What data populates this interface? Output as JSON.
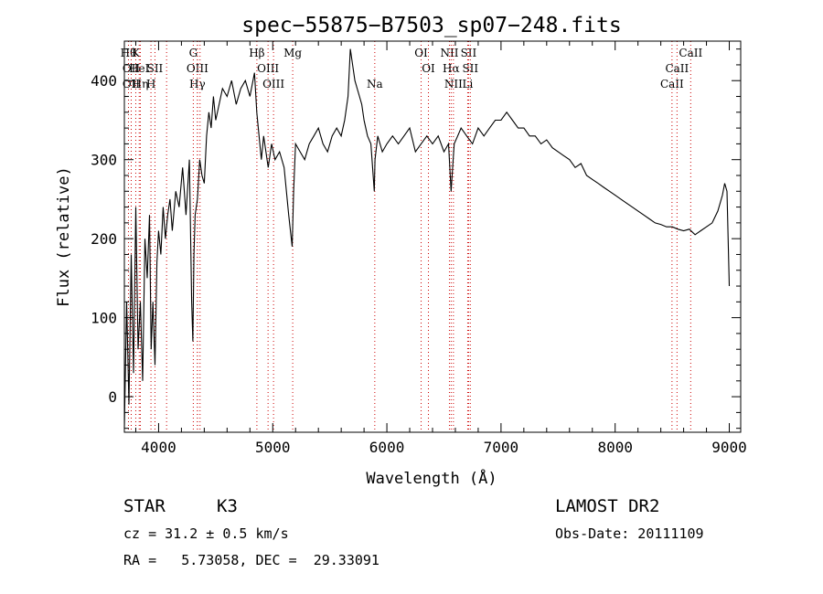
{
  "chart_data": {
    "type": "line",
    "title": "spec−55875−B7503_sp07−248.fits",
    "xlabel": "Wavelength (Å)",
    "ylabel": "Flux (relative)",
    "xlim": [
      3700,
      9100
    ],
    "ylim": [
      -45,
      450
    ],
    "xticks": [
      4000,
      5000,
      6000,
      7000,
      8000,
      9000
    ],
    "yticks": [
      0,
      100,
      200,
      300,
      400
    ],
    "series": [
      {
        "x": [
          3700,
          3720,
          3740,
          3760,
          3780,
          3800,
          3820,
          3840,
          3860,
          3880,
          3900,
          3920,
          3935,
          3950,
          3968,
          3985,
          4000,
          4020,
          4040,
          4060,
          4080,
          4100,
          4120,
          4150,
          4180,
          4210,
          4240,
          4270,
          4290,
          4300,
          4310,
          4320,
          4340,
          4360,
          4380,
          4400,
          4420,
          4440,
          4460,
          4480,
          4500,
          4530,
          4560,
          4600,
          4640,
          4680,
          4720,
          4760,
          4800,
          4840,
          4860,
          4880,
          4900,
          4920,
          4940,
          4960,
          4990,
          5020,
          5060,
          5100,
          5140,
          5170,
          5183,
          5200,
          5240,
          5280,
          5320,
          5360,
          5400,
          5440,
          5480,
          5520,
          5560,
          5600,
          5630,
          5660,
          5680,
          5700,
          5720,
          5740,
          5760,
          5780,
          5800,
          5830,
          5860,
          5890,
          5896,
          5920,
          5960,
          6000,
          6050,
          6100,
          6150,
          6200,
          6250,
          6300,
          6350,
          6400,
          6450,
          6500,
          6540,
          6563,
          6590,
          6620,
          6650,
          6700,
          6750,
          6800,
          6850,
          6900,
          6950,
          7000,
          7050,
          7100,
          7150,
          7200,
          7250,
          7300,
          7350,
          7400,
          7450,
          7500,
          7550,
          7600,
          7650,
          7700,
          7750,
          7800,
          7850,
          7900,
          7950,
          8000,
          8050,
          8100,
          8150,
          8200,
          8250,
          8300,
          8350,
          8400,
          8450,
          8500,
          8550,
          8600,
          8650,
          8700,
          8750,
          8800,
          8850,
          8900,
          8940,
          8960,
          8980,
          9000
        ],
        "y": [
          -40,
          120,
          -10,
          180,
          30,
          240,
          60,
          120,
          20,
          200,
          150,
          230,
          60,
          120,
          40,
          170,
          210,
          180,
          240,
          200,
          230,
          250,
          210,
          260,
          240,
          290,
          230,
          300,
          120,
          70,
          180,
          230,
          250,
          300,
          280,
          270,
          330,
          360,
          340,
          380,
          350,
          370,
          390,
          380,
          400,
          370,
          390,
          400,
          380,
          410,
          360,
          330,
          300,
          330,
          310,
          290,
          320,
          300,
          310,
          290,
          230,
          190,
          260,
          320,
          310,
          300,
          320,
          330,
          340,
          320,
          310,
          330,
          340,
          330,
          350,
          380,
          440,
          420,
          400,
          390,
          380,
          370,
          350,
          330,
          320,
          260,
          300,
          330,
          310,
          320,
          330,
          320,
          330,
          340,
          310,
          320,
          330,
          320,
          330,
          310,
          320,
          260,
          320,
          330,
          340,
          330,
          320,
          340,
          330,
          340,
          350,
          350,
          360,
          350,
          340,
          340,
          330,
          330,
          320,
          325,
          315,
          310,
          305,
          300,
          290,
          295,
          280,
          275,
          270,
          265,
          260,
          255,
          250,
          245,
          240,
          235,
          230,
          225,
          220,
          218,
          215,
          215,
          212,
          210,
          212,
          205,
          210,
          215,
          220,
          235,
          255,
          270,
          260,
          140
        ]
      }
    ],
    "line_markers": [
      {
        "x": 3736,
        "label": "Hθ",
        "row": 0
      },
      {
        "x": 3760,
        "label": "OII",
        "row": 1
      },
      {
        "x": 3760,
        "label": "OII",
        "row": 2
      },
      {
        "x": 3800,
        "label": "K",
        "row": 0
      },
      {
        "x": 3830,
        "label": "HeI",
        "row": 1
      },
      {
        "x": 3840,
        "label": "Hη",
        "row": 2
      },
      {
        "x": 3933,
        "label": "H",
        "row": 2
      },
      {
        "x": 3968,
        "label": "SII",
        "row": 1
      },
      {
        "x": 4070,
        "label": "",
        "row": 0
      },
      {
        "x": 4304,
        "label": "G",
        "row": 0
      },
      {
        "x": 4340,
        "label": "OIII",
        "row": 1
      },
      {
        "x": 4340,
        "label": "Hγ",
        "row": 2
      },
      {
        "x": 4363,
        "label": "",
        "row": 0
      },
      {
        "x": 4861,
        "label": "Hβ",
        "row": 0
      },
      {
        "x": 4959,
        "label": "OIII",
        "row": 1
      },
      {
        "x": 5007,
        "label": "OIII",
        "row": 2
      },
      {
        "x": 5175,
        "label": "Mg",
        "row": 0
      },
      {
        "x": 5894,
        "label": "Na",
        "row": 2
      },
      {
        "x": 6300,
        "label": "OI",
        "row": 0
      },
      {
        "x": 6364,
        "label": "OI",
        "row": 1
      },
      {
        "x": 6548,
        "label": "NII",
        "row": 0
      },
      {
        "x": 6563,
        "label": "Hα",
        "row": 1
      },
      {
        "x": 6583,
        "label": "NII",
        "row": 2
      },
      {
        "x": 6716,
        "label": "SII",
        "row": 0
      },
      {
        "x": 6731,
        "label": "SII",
        "row": 1
      },
      {
        "x": 6708,
        "label": "Li",
        "row": 2
      },
      {
        "x": 8498,
        "label": "CaII",
        "row": 2
      },
      {
        "x": 8542,
        "label": "CaII",
        "row": 1
      },
      {
        "x": 8662,
        "label": "CaII",
        "row": 0
      }
    ],
    "grid": false,
    "line_color": "#000000",
    "marker_color": "#cc0000"
  },
  "info": {
    "object_type": "STAR",
    "subclass": "K3",
    "survey": "LAMOST DR2",
    "redshift": "cz = 31.2 ± 0.5 km/s",
    "obs_date": "Obs-Date: 20111109",
    "coords": "RA =   5.73058, DEC =  29.33091"
  }
}
